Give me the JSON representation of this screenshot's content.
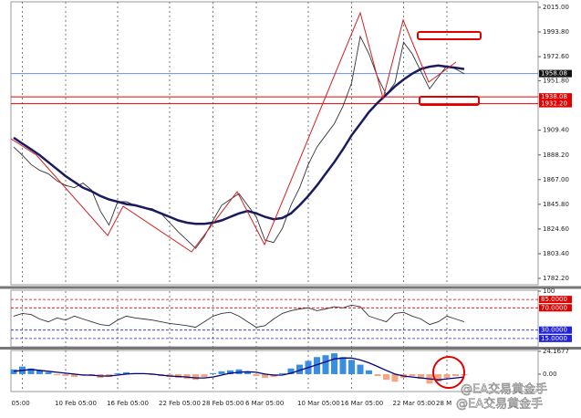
{
  "chart_data": [
    {
      "type": "line",
      "categories": [
        null,
        "05:00",
        null,
        null,
        null,
        null,
        "10 Feb 05:00",
        null,
        null,
        null,
        null,
        null,
        "16 Feb 05:00",
        null,
        null,
        null,
        null,
        null,
        "22 Feb 05:00",
        null,
        null,
        null,
        null,
        "28 Feb 05:00",
        null,
        null,
        null,
        null,
        "6 Mar 05:00",
        null,
        null,
        null,
        null,
        null,
        "10 Mar 05:00",
        null,
        null,
        null,
        null,
        "16 Mar 05:00",
        null,
        null,
        null,
        null,
        null,
        "22 Mar 05:00",
        null,
        null,
        null,
        null,
        "28 M",
        null,
        null,
        null,
        null,
        null,
        null,
        null,
        null,
        null,
        null
      ],
      "series": [
        {
          "color": "#333333",
          "values": [
            1895,
            1888,
            1880,
            1875,
            1872,
            1866,
            1862,
            1860,
            1864,
            1858,
            1840,
            1828,
            1848,
            1848,
            1845,
            1843,
            1842,
            1838,
            1830,
            1822,
            1815,
            1808,
            1818,
            1832,
            1845,
            1850,
            1855,
            1845,
            1835,
            1815,
            1813,
            1825,
            1845,
            1860,
            1880,
            1895,
            1905,
            1915,
            1930,
            1950,
            1990,
            1975,
            1955,
            1940,
            1950,
            1985,
            1975,
            1960,
            1945,
            1955,
            1965,
            1962,
            1958,
            null,
            null,
            null,
            null,
            null,
            null,
            null,
            null
          ]
        },
        {
          "color": "#1a1a5e",
          "values": [
            1903,
            1898,
            1893,
            1888,
            1882,
            1876,
            1870,
            1865,
            1860,
            1857,
            1853,
            1850,
            1848,
            1846,
            1845,
            1843,
            1841,
            1838,
            1835,
            1832,
            1830,
            1829,
            1829,
            1830,
            1832,
            1835,
            1838,
            1840,
            1838,
            1835,
            1833,
            1834,
            1838,
            1845,
            1853,
            1862,
            1872,
            1882,
            1893,
            1905,
            1915,
            1925,
            1933,
            1940,
            1947,
            1953,
            1958,
            1962,
            1964,
            1965,
            1964,
            1963,
            1962,
            null,
            null,
            null,
            null,
            null,
            null,
            null,
            null
          ]
        }
      ],
      "ylim": [
        1776.7,
        2019.7
      ],
      "yticks": [
        {
          "value": 2015,
          "label": "2015.00"
        },
        {
          "value": 1993.8,
          "label": "1993.80"
        },
        {
          "value": 1972.6,
          "label": "1972.60"
        },
        {
          "value": 1951.8,
          "label": "1951.80"
        },
        {
          "value": 1909.4,
          "label": "1909.40"
        },
        {
          "value": 1888.2,
          "label": "1888.20"
        },
        {
          "value": 1867,
          "label": "1867.00"
        },
        {
          "value": 1845.8,
          "label": "1845.80"
        },
        {
          "value": 1824.6,
          "label": "1824.60"
        },
        {
          "value": 1803.4,
          "label": "1803.40"
        },
        {
          "value": 1782.2,
          "label": "1782.20"
        }
      ],
      "levels": [
        {
          "value": 1958.08,
          "label": "1958.08",
          "color": "#6f8fd8"
        },
        {
          "value": 1938.08,
          "label": "1938.08",
          "color": "#e00000"
        },
        {
          "value": 1932.2,
          "label": "1932.20",
          "color": "#e00000"
        }
      ],
      "xgrid": true
    },
    {
      "type": "line",
      "series": [
        {
          "color": "#333333",
          "values": [
            55,
            60,
            58,
            50,
            45,
            52,
            48,
            55,
            50,
            45,
            40,
            38,
            48,
            55,
            52,
            50,
            48,
            45,
            42,
            40,
            38,
            35,
            45,
            55,
            60,
            62,
            55,
            45,
            35,
            38,
            50,
            60,
            65,
            68,
            70,
            65,
            68,
            72,
            70,
            75,
            72,
            55,
            50,
            45,
            60,
            62,
            55,
            50,
            40,
            45,
            55,
            50,
            45,
            null,
            null,
            null,
            null,
            null,
            null,
            null,
            null
          ]
        }
      ],
      "ylim": [
        0,
        100
      ],
      "yticks": [
        100
      ],
      "levels": [
        {
          "value": 85,
          "label": "85.0000",
          "color": "#e00000"
        },
        {
          "value": 70,
          "label": "70.0000",
          "color": "#e00000"
        },
        {
          "value": 30,
          "label": "30.0000",
          "color": "#2020e0"
        },
        {
          "value": 15,
          "label": "15.0000",
          "color": "#2020e0"
        }
      ],
      "xgrid": true
    },
    {
      "type": "bar",
      "values": [
        5,
        8,
        6,
        4,
        2,
        -1,
        -2,
        -3,
        -1,
        -2,
        -4,
        -3,
        1,
        2,
        1,
        0,
        -1,
        -2,
        -3,
        -4,
        -5,
        -6,
        -3,
        1,
        3,
        4,
        5,
        2,
        -2,
        -4,
        -3,
        1,
        6,
        10,
        14,
        18,
        20,
        22,
        18,
        15,
        10,
        4,
        -2,
        -6,
        -8,
        -4,
        -2,
        -5,
        -10,
        -8,
        -4,
        -2,
        -1,
        null,
        null,
        null,
        null,
        null,
        null,
        null,
        null
      ],
      "colors": {
        "positive": "#3a8ee0",
        "negative": "#f4a582"
      },
      "line": {
        "color": "#000080",
        "values": [
          3,
          4,
          5,
          4,
          3,
          2,
          1,
          0,
          -1,
          -1,
          -2,
          -2,
          -1,
          0,
          0.5,
          0.5,
          0,
          -1,
          -2,
          -2.5,
          -3,
          -4,
          -4,
          -3,
          -1,
          1,
          2,
          2.5,
          2,
          0,
          -1,
          -1,
          1,
          4,
          7,
          10,
          13,
          16,
          17,
          17,
          15,
          12,
          8,
          4,
          0,
          -2,
          -3,
          -4,
          -5,
          -6,
          -5,
          -4,
          -3,
          null,
          null,
          null,
          null,
          null,
          null,
          null,
          null
        ]
      },
      "ylim": [
        -17.4,
        25
      ],
      "yticks": [
        {
          "value": 24.1677,
          "label": "24.1677"
        },
        {
          "value": 0,
          "label": "0.00"
        }
      ],
      "xgrid": true
    }
  ],
  "watermark": "@EA交易黄金手"
}
